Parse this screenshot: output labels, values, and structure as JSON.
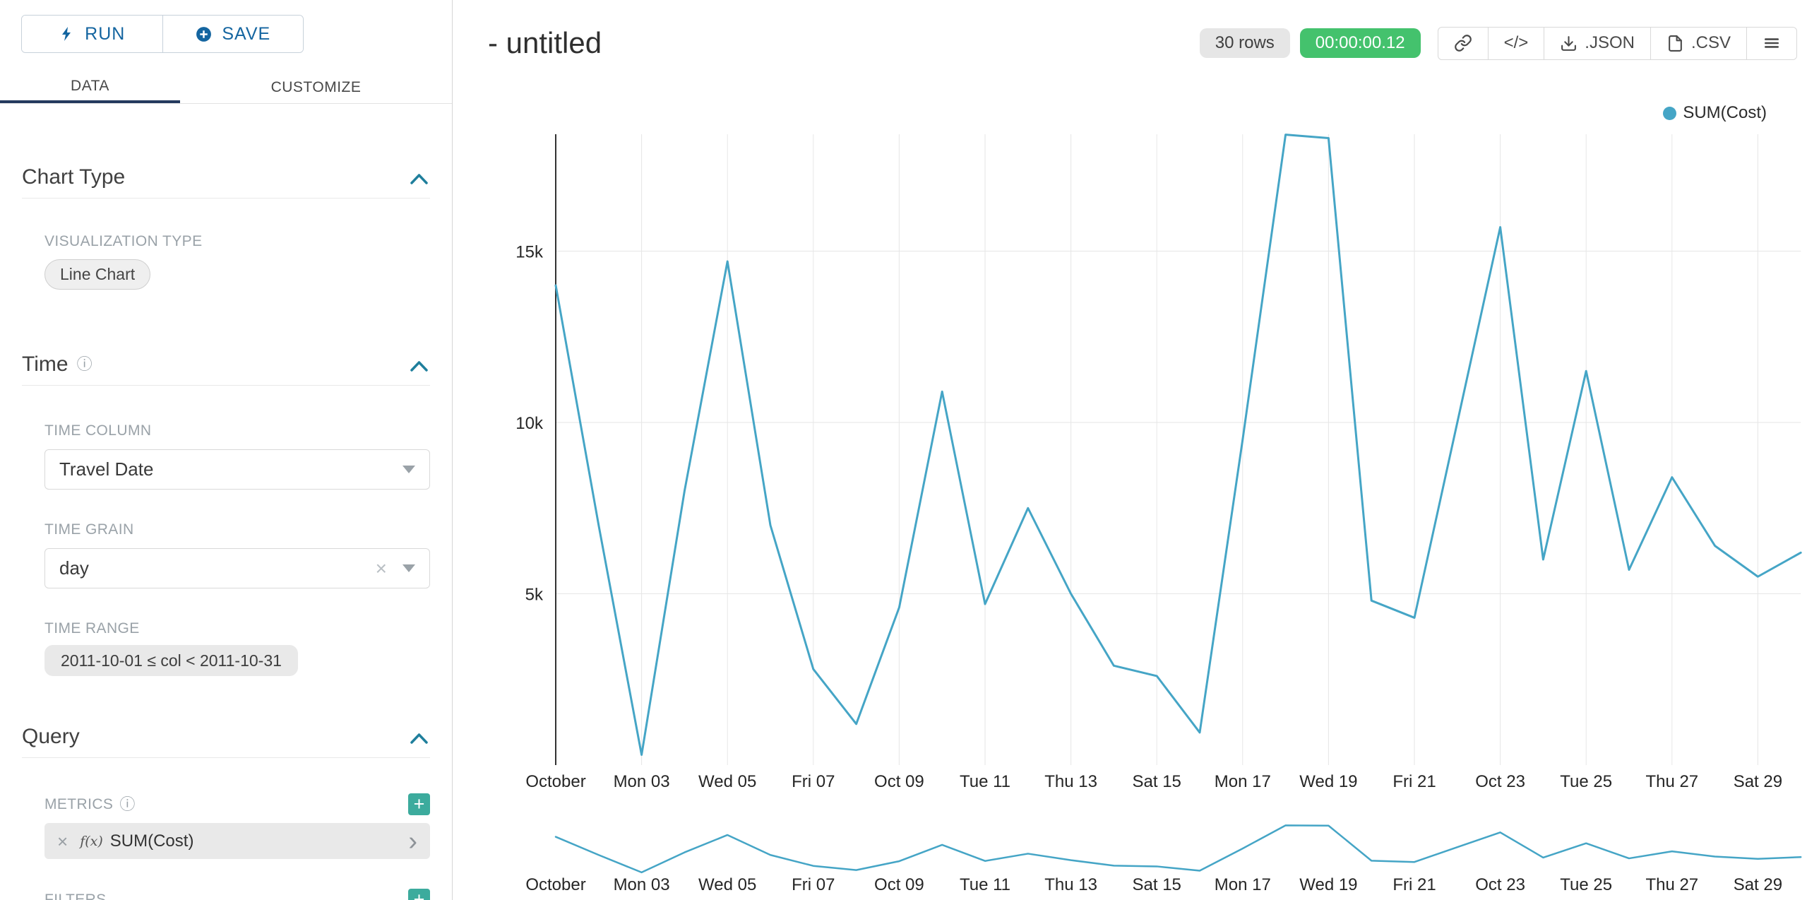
{
  "sidebar": {
    "run_label": "RUN",
    "save_label": "SAVE",
    "tabs": [
      {
        "label": "DATA",
        "active": true
      },
      {
        "label": "CUSTOMIZE",
        "active": false
      }
    ],
    "chart_type": {
      "title": "Chart Type",
      "viz_label": "VISUALIZATION TYPE",
      "viz_value": "Line Chart"
    },
    "time": {
      "title": "Time",
      "column_label": "TIME COLUMN",
      "column_value": "Travel Date",
      "grain_label": "TIME GRAIN",
      "grain_value": "day",
      "range_label": "TIME RANGE",
      "range_value": "2011-10-01 ≤ col < 2011-10-31"
    },
    "query": {
      "title": "Query",
      "metrics_label": "METRICS",
      "metric_fx": "f(x)",
      "metric_name": "SUM(Cost)",
      "filters_label": "FILTERS"
    }
  },
  "header": {
    "title": "- untitled",
    "rows_badge": "30 rows",
    "timer_badge": "00:00:00.12",
    "code_label": "</>",
    "json_label": ".JSON",
    "csv_label": ".CSV"
  },
  "legend": {
    "label": "SUM(Cost)"
  },
  "icons": {
    "info": "ⓘ",
    "clear": "×",
    "plus": "+",
    "chevron_right": "›"
  },
  "colors": {
    "line": "#45a5c6",
    "gridline": "#e6e6e6",
    "axis_line": "#333333",
    "tick_text": "#262626",
    "rows_badge_bg": "#e6e6e6",
    "timer_badge_bg": "#44c26d",
    "accent_blue": "#1465a0",
    "teal_add_button": "#3cab9d",
    "section_chevron": "#1f7f9c",
    "active_tab_underline": "#243a5e"
  },
  "chart_data": {
    "type": "line",
    "title": "- untitled",
    "xlabel": "",
    "ylabel": "",
    "legend_position": "top-right",
    "grid": true,
    "has_range_brush_preview": true,
    "x": [
      "2011-10-01",
      "2011-10-02",
      "2011-10-03",
      "2011-10-04",
      "2011-10-05",
      "2011-10-06",
      "2011-10-07",
      "2011-10-08",
      "2011-10-09",
      "2011-10-10",
      "2011-10-11",
      "2011-10-12",
      "2011-10-13",
      "2011-10-14",
      "2011-10-15",
      "2011-10-16",
      "2011-10-17",
      "2011-10-18",
      "2011-10-19",
      "2011-10-20",
      "2011-10-21",
      "2011-10-22",
      "2011-10-23",
      "2011-10-24",
      "2011-10-25",
      "2011-10-26",
      "2011-10-27",
      "2011-10-28",
      "2011-10-29",
      "2011-10-30"
    ],
    "x_tick_labels": [
      "October",
      "Mon 03",
      "Wed 05",
      "Fri 07",
      "Oct 09",
      "Tue 11",
      "Thu 13",
      "Sat 15",
      "Mon 17",
      "Wed 19",
      "Fri 21",
      "Oct 23",
      "Tue 25",
      "Thu 27",
      "Sat 29"
    ],
    "series": [
      {
        "name": "SUM(Cost)",
        "values": [
          14000,
          7000,
          300,
          8000,
          14700,
          7000,
          2800,
          1200,
          4600,
          10900,
          4700,
          7500,
          5000,
          2900,
          2600,
          950,
          9500,
          18400,
          18300,
          4800,
          4300,
          10000,
          15700,
          6000,
          11500,
          5700,
          8400,
          6400,
          5500,
          6200
        ]
      }
    ],
    "y_ticks": [
      {
        "value": 5000,
        "label": "5k"
      },
      {
        "value": 10000,
        "label": "10k"
      },
      {
        "value": 15000,
        "label": "15k"
      }
    ],
    "ylim": [
      0,
      18500
    ]
  }
}
